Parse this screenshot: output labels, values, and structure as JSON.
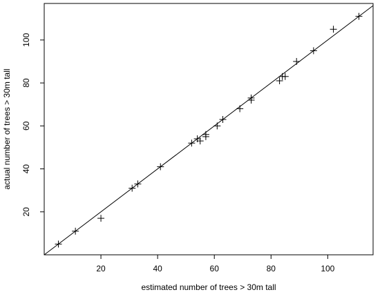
{
  "chart_data": {
    "type": "scatter",
    "title": "",
    "xlabel": "estimated number of trees > 30m tall",
    "ylabel": "actual number of trees > 30m tall",
    "xlim": [
      0,
      116
    ],
    "ylim": [
      0,
      117
    ],
    "x_ticks": [
      20,
      40,
      60,
      80,
      100
    ],
    "y_ticks": [
      20,
      40,
      60,
      80,
      100
    ],
    "grid": false,
    "legend": "none",
    "marker": "plus",
    "reference_line": {
      "type": "identity",
      "from": [
        0,
        0
      ],
      "to": [
        116,
        116
      ]
    },
    "points": [
      {
        "x": 5,
        "y": 5
      },
      {
        "x": 11,
        "y": 11
      },
      {
        "x": 20,
        "y": 17
      },
      {
        "x": 31,
        "y": 31
      },
      {
        "x": 33,
        "y": 33
      },
      {
        "x": 41,
        "y": 41
      },
      {
        "x": 52,
        "y": 52
      },
      {
        "x": 54,
        "y": 54
      },
      {
        "x": 55,
        "y": 53
      },
      {
        "x": 57,
        "y": 55
      },
      {
        "x": 57,
        "y": 56
      },
      {
        "x": 61,
        "y": 60
      },
      {
        "x": 63,
        "y": 63
      },
      {
        "x": 69,
        "y": 68
      },
      {
        "x": 73,
        "y": 72
      },
      {
        "x": 73,
        "y": 73
      },
      {
        "x": 83,
        "y": 81
      },
      {
        "x": 84,
        "y": 83
      },
      {
        "x": 85,
        "y": 83
      },
      {
        "x": 89,
        "y": 90
      },
      {
        "x": 95,
        "y": 95
      },
      {
        "x": 102,
        "y": 105
      },
      {
        "x": 111,
        "y": 111
      }
    ]
  }
}
